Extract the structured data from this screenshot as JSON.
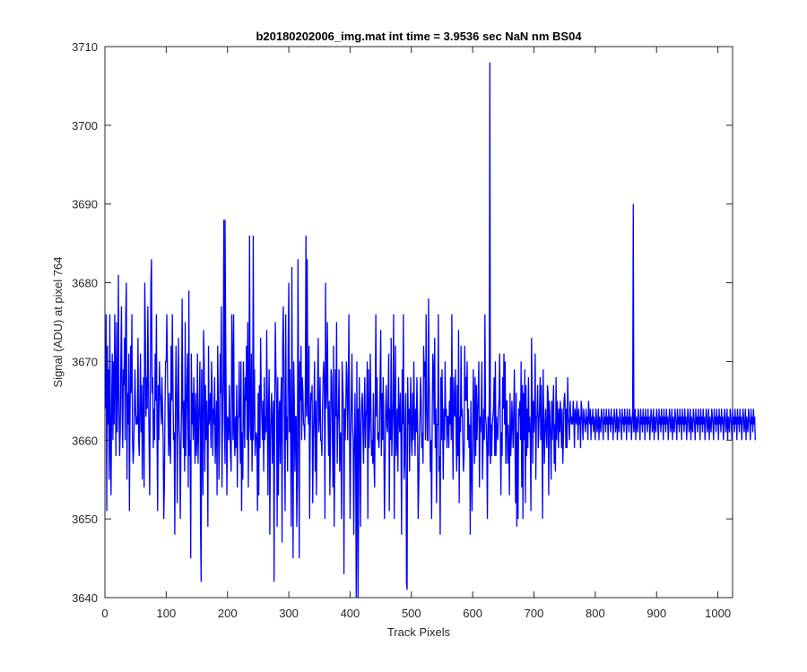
{
  "chart_data": {
    "type": "line",
    "title": "b20180202006_img.mat int time = 3.9536 sec  NaN nm BS04",
    "xlabel": "Track Pixels",
    "ylabel": "Signal (ADU) at pixel 764",
    "xlim": [
      0,
      1024
    ],
    "ylim": [
      3640,
      3710
    ],
    "xticks": [
      0,
      100,
      200,
      300,
      400,
      500,
      600,
      700,
      800,
      900,
      1000
    ],
    "yticks": [
      3640,
      3650,
      3660,
      3670,
      3680,
      3690,
      3700,
      3710
    ],
    "grid": false,
    "series_color": "#0000ff",
    "series": [
      {
        "x_start": 1,
        "x_step": 1,
        "values": [
          3664,
          3676,
          3651,
          3672,
          3662,
          3669,
          3655,
          3676,
          3660,
          3653,
          3665,
          3671,
          3660,
          3670,
          3662,
          3676,
          3668,
          3658,
          3675,
          3661,
          3666,
          3681,
          3664,
          3658,
          3661,
          3670,
          3677,
          3664,
          3659,
          3669,
          3667,
          3673,
          3660,
          3676,
          3680,
          3655,
          3666,
          3662,
          3671,
          3651,
          3664,
          3672,
          3666,
          3676,
          3660,
          3657,
          3659,
          3663,
          3669,
          3664,
          3662,
          3663,
          3662,
          3673,
          3660,
          3658,
          3665,
          3671,
          3661,
          3667,
          3655,
          3663,
          3668,
          3654,
          3680,
          3674,
          3663,
          3668,
          3664,
          3677,
          3668,
          3660,
          3653,
          3665,
          3680,
          3683,
          3666,
          3668,
          3659,
          3664,
          3660,
          3671,
          3665,
          3676,
          3661,
          3651,
          3667,
          3660,
          3670,
          3666,
          3665,
          3662,
          3668,
          3664,
          3660,
          3650,
          3654,
          3664,
          3670,
          3670,
          3676,
          3669,
          3663,
          3658,
          3666,
          3660,
          3657,
          3672,
          3665,
          3676,
          3667,
          3660,
          3661,
          3648,
          3664,
          3672,
          3666,
          3652,
          3664,
          3673,
          3662,
          3660,
          3650,
          3659,
          3664,
          3678,
          3664,
          3659,
          3665,
          3656,
          3675,
          3658,
          3663,
          3668,
          3671,
          3654,
          3679,
          3658,
          3660,
          3645,
          3671,
          3662,
          3666,
          3660,
          3668,
          3663,
          3657,
          3666,
          3658,
          3660,
          3671,
          3657,
          3662,
          3665,
          3670,
          3649,
          3661,
          3669,
          3660,
          3653,
          3674,
          3670,
          3656,
          3667,
          3660,
          3665,
          3661,
          3649,
          3672,
          3662,
          3663,
          3666,
          3659,
          3670,
          3666,
          3658,
          3664,
          3662,
          3668,
          3657,
          3661,
          3665,
          3653,
          3672,
          3665,
          3655,
          3660,
          3671,
          3666,
          3677,
          3654,
          3664,
          3668,
          3688,
          3662,
          3657,
          3674,
          3664,
          3653,
          3663,
          3662,
          3660,
          3667,
          3662,
          3658,
          3656,
          3676,
          3671,
          3660,
          3676,
          3661,
          3658,
          3663,
          3659,
          3667,
          3654,
          3663,
          3663,
          3670,
          3662,
          3657,
          3670,
          3651,
          3661,
          3655,
          3670,
          3664,
          3659,
          3668,
          3665,
          3672,
          3660,
          3675,
          3654,
          3665,
          3686,
          3662,
          3660,
          3671,
          3656,
          3662,
          3660,
          3665,
          3669,
          3658,
          3660,
          3661,
          3660,
          3651,
          3666,
          3653,
          3667,
          3659,
          3673,
          3666,
          3663,
          3660,
          3665,
          3656,
          3668,
          3660,
          3663,
          3661,
          3674,
          3664,
          3653,
          3665,
          3669,
          3648,
          3660,
          3664,
          3666,
          3657,
          3662,
          3665,
          3642,
          3664,
          3675,
          3669,
          3665,
          3649,
          3668,
          3653,
          3663,
          3665,
          3657,
          3665,
          3668,
          3647,
          3672,
          3677,
          3670,
          3659,
          3651,
          3676,
          3660,
          3663,
          3656,
          3672,
          3680,
          3661,
          3669,
          3660,
          3649,
          3682,
          3660,
          3645,
          3670,
          3665,
          3656,
          3663,
          3663,
          3649,
          3655,
          3683,
          3666,
          3645,
          3670,
          3665,
          3672,
          3660,
          3668,
          3666,
          3662,
          3662,
          3660,
          3667,
          3675,
          3663,
          3683,
          3665,
          3662,
          3672,
          3650,
          3661,
          3666,
          3665,
          3667,
          3652,
          3660,
          3664,
          3670,
          3656,
          3665,
          3653,
          3661,
          3667,
          3673,
          3661,
          3663,
          3668,
          3660,
          3660,
          3658,
          3664,
          3668,
          3670,
          3667,
          3650,
          3680,
          3664,
          3667,
          3675,
          3663,
          3658,
          3665,
          3653,
          3660,
          3669,
          3668,
          3662,
          3654,
          3672,
          3649,
          3657,
          3669,
          3663,
          3675,
          3657,
          3662,
          3664,
          3669,
          3656,
          3660,
          3661,
          3650,
          3670,
          3667,
          3665,
          3643,
          3664,
          3660,
          3664,
          3670,
          3668,
          3660,
          3665,
          3676,
          3663,
          3650,
          3660,
          3665,
          3671,
          3662,
          3660,
          3648,
          3659,
          3666,
          3658,
          3640,
          3670,
          3650,
          3664,
          3653,
          3668,
          3660,
          3649,
          3662,
          3665,
          3666,
          3661,
          3657,
          3664,
          3668,
          3659,
          3663,
          3664,
          3670,
          3650,
          3669,
          3659,
          3662,
          3671,
          3664,
          3658,
          3660,
          3657,
          3666,
          3657,
          3654,
          3665,
          3676,
          3663,
          3668,
          3660,
          3661,
          3659,
          3661,
          3668,
          3674,
          3658,
          3666,
          3660,
          3668,
          3661,
          3650,
          3656,
          3664,
          3667,
          3662,
          3661,
          3665,
          3671,
          3651,
          3664,
          3660,
          3673,
          3658,
          3662,
          3665,
          3676,
          3650,
          3663,
          3672,
          3658,
          3660,
          3664,
          3656,
          3668,
          3663,
          3661,
          3666,
          3660,
          3648,
          3669,
          3662,
          3676,
          3655,
          3657,
          3663,
          3666,
          3642,
          3641,
          3668,
          3662,
          3664,
          3656,
          3664,
          3668,
          3660,
          3658,
          3666,
          3660,
          3670,
          3663,
          3658,
          3664,
          3661,
          3668,
          3663,
          3650,
          3654,
          3660,
          3663,
          3668,
          3665,
          3659,
          3661,
          3657,
          3672,
          3668,
          3670,
          3660,
          3676,
          3665,
          3660,
          3660,
          3678,
          3668,
          3662,
          3656,
          3660,
          3650,
          3663,
          3671,
          3669,
          3662,
          3673,
          3659,
          3664,
          3652,
          3662,
          3662,
          3676,
          3656,
          3658,
          3648,
          3668,
          3660,
          3669,
          3662,
          3655,
          3664,
          3660,
          3670,
          3663,
          3664,
          3659,
          3663,
          3663,
          3659,
          3665,
          3662,
          3668,
          3660,
          3676,
          3662,
          3655,
          3668,
          3664,
          3663,
          3669,
          3660,
          3656,
          3667,
          3658,
          3674,
          3652,
          3663,
          3661,
          3672,
          3663,
          3664,
          3659,
          3656,
          3658,
          3672,
          3665,
          3668,
          3665,
          3670,
          3660,
          3664,
          3659,
          3662,
          3648,
          3665,
          3657,
          3651,
          3660,
          3669,
          3663,
          3657,
          3668,
          3658,
          3667,
          3660,
          3663,
          3666,
          3670,
          3654,
          3663,
          3661,
          3664,
          3670,
          3655,
          3660,
          3664,
          3660,
          3676,
          3663,
          3662,
          3659,
          3650,
          3663,
          3658,
          3665,
          3669,
          3657,
          3662,
          3658,
          3662,
          3663,
          3664,
          3668,
          3658,
          3670,
          3658,
          3663,
          3661,
          3660,
          3664,
          3665,
          3671,
          3662,
          3653,
          3661,
          3658,
          3668,
          3664,
          3671,
          3662,
          3670,
          3657,
          3665,
          3665,
          3657,
          3662,
          3659,
          3653,
          3666,
          3658,
          3660,
          3665,
          3662,
          3659,
          3664,
          3669,
          3660,
          3652,
          3666,
          3649,
          3661,
          3650,
          3664,
          3663,
          3665,
          3660,
          3670,
          3654,
          3667,
          3650,
          3666,
          3660,
          3669,
          3652,
          3667,
          3658,
          3664,
          3659,
          3668,
          3661,
          3663,
          3660,
          3651,
          3673,
          3666,
          3657,
          3665,
          3661,
          3664,
          3671,
          3655,
          3663,
          3663,
          3667,
          3659,
          3662,
          3664,
          3668,
          3660,
          3667,
          3661,
          3650,
          3669,
          3662,
          3657,
          3662,
          3664,
          3661,
          3659,
          3667,
          3666,
          3653,
          3665,
          3663,
          3660,
          3655,
          3665,
          3660,
          3664,
          3667,
          3657,
          3662,
          3656,
          3668,
          3660,
          3665,
          3663,
          3659,
          3664,
          3661,
          3665,
          3663,
          3659,
          3664,
          3657,
          3660,
          3665,
          3666,
          3664,
          3659,
          3664,
          3659,
          3668,
          3663,
          3662,
          3660,
          3665,
          3663,
          3662,
          3663,
          3662,
          3665,
          3663,
          3659,
          3664,
          3663,
          3662,
          3665,
          3663,
          3660,
          3664,
          3662,
          3663,
          3659,
          3665,
          3664,
          3662,
          3660,
          3664,
          3663,
          3662,
          3661,
          3664,
          3662,
          3663,
          3660,
          3665,
          3663,
          3662,
          3664,
          3660,
          3663,
          3662,
          3664,
          3661,
          3663,
          3662,
          3660,
          3664,
          3663,
          3661,
          3662,
          3664,
          3660,
          3663,
          3662,
          3661,
          3664,
          3663,
          3662,
          3660,
          3664,
          3662,
          3663,
          3661,
          3664,
          3662,
          3663,
          3660,
          3664,
          3662,
          3663,
          3661,
          3664,
          3662,
          3663,
          3660,
          3662,
          3664,
          3663,
          3661,
          3662,
          3664,
          3660,
          3663,
          3662,
          3661,
          3664,
          3663,
          3662,
          3660,
          3664,
          3662,
          3663,
          3661,
          3664,
          3662,
          3663,
          3660,
          3664,
          3662,
          3663,
          3661,
          3664,
          3662,
          3663,
          3660,
          3662,
          3664,
          3663,
          3661,
          3662,
          3664,
          3660,
          3663,
          3662,
          3661,
          3664,
          3663,
          3662,
          3660,
          3664,
          3662,
          3663,
          3661,
          3664,
          3662,
          3663,
          3660,
          3664,
          3662,
          3663,
          3661,
          3664,
          3662,
          3663,
          3660,
          3662,
          3664,
          3663,
          3661,
          3662,
          3664,
          3660,
          3663,
          3662,
          3661,
          3664,
          3663,
          3662,
          3660,
          3664,
          3662,
          3663,
          3661,
          3664,
          3662,
          3663,
          3660,
          3664,
          3662,
          3663,
          3661,
          3664,
          3662,
          3663,
          3660,
          3662,
          3664,
          3663,
          3661,
          3662,
          3664,
          3660,
          3663,
          3662,
          3661,
          3664,
          3663,
          3662,
          3660,
          3664,
          3662,
          3663,
          3661,
          3664,
          3662,
          3663,
          3660,
          3664,
          3662,
          3663,
          3661,
          3664,
          3662,
          3663,
          3660,
          3662,
          3664,
          3663,
          3661,
          3662,
          3664,
          3660,
          3663,
          3662,
          3661,
          3664,
          3663,
          3662,
          3660,
          3664,
          3662,
          3663,
          3661,
          3664,
          3662,
          3663,
          3660,
          3664,
          3662,
          3663,
          3661,
          3664,
          3662,
          3663,
          3660,
          3662,
          3664,
          3663,
          3661,
          3662,
          3664,
          3660,
          3663,
          3662,
          3661,
          3664,
          3663,
          3662,
          3660,
          3664,
          3662,
          3663,
          3661,
          3664,
          3662,
          3663,
          3660,
          3664,
          3662,
          3663,
          3661,
          3664,
          3662,
          3663,
          3660,
          3662,
          3664,
          3663,
          3661,
          3662,
          3664,
          3660,
          3663,
          3662,
          3661,
          3664,
          3663,
          3662,
          3660,
          3664,
          3662,
          3663,
          3661,
          3664,
          3662,
          3663,
          3660,
          3664,
          3662,
          3663,
          3661,
          3664,
          3662,
          3663,
          3660,
          3662,
          3664,
          3663,
          3661,
          3662,
          3664,
          3660,
          3663,
          3662,
          3661,
          3664,
          3663,
          3662,
          3660,
          3664,
          3662,
          3663,
          3661,
          3664,
          3662,
          3663,
          3660
        ]
      }
    ],
    "peaks": [
      {
        "x": 628,
        "y": 3708
      },
      {
        "x": 862,
        "y": 3690
      },
      {
        "x": 196,
        "y": 3688
      },
      {
        "x": 242,
        "y": 3686
      },
      {
        "x": 328,
        "y": 3686
      },
      {
        "x": 413,
        "y": 3640
      },
      {
        "x": 157,
        "y": 3642
      }
    ]
  }
}
